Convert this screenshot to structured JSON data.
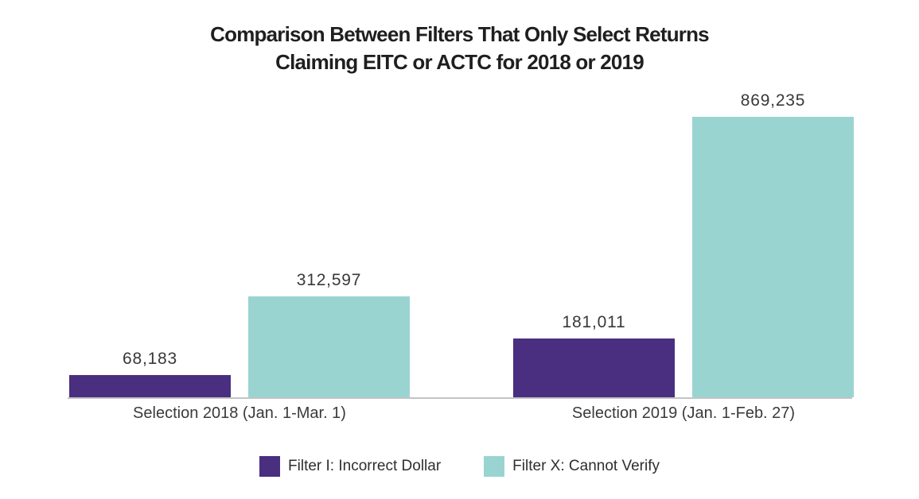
{
  "chart_data": {
    "type": "bar",
    "title": "Comparison Between Filters That Only Select Returns Claiming EITC or ACTC for 2018 or 2019",
    "title_lines": [
      "Comparison Between Filters That Only Select Returns",
      "Claiming EITC or ACTC for 2018 or 2019"
    ],
    "categories": [
      "Selection 2018 (Jan. 1-Mar. 1)",
      "Selection 2019 (Jan. 1-Feb. 27)"
    ],
    "series": [
      {
        "name": "Filter I: Incorrect Dollar",
        "color": "#4a2e80",
        "values": [
          68183,
          181011
        ],
        "labels": [
          "68,183",
          "181,011"
        ]
      },
      {
        "name": "Filter X: Cannot Verify",
        "color": "#9ad4d1",
        "values": [
          312597,
          869235
        ],
        "labels": [
          "312,597",
          "869,235"
        ]
      }
    ],
    "xlabel": "",
    "ylabel": "",
    "ylim": [
      0,
      869235
    ],
    "grid": false,
    "legend_position": "bottom",
    "axis_line_color": "#c4c4c4",
    "value_label_color": "#383838"
  }
}
